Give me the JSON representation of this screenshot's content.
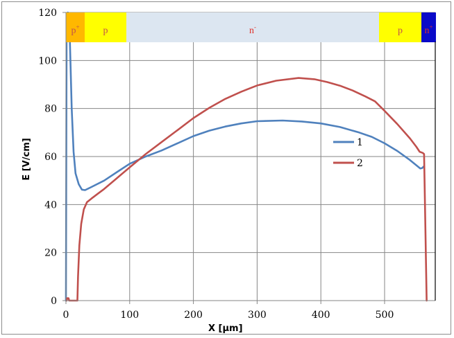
{
  "chart_data": {
    "type": "line",
    "title": "",
    "xlabel": "X [µm]",
    "ylabel": "E [V/cm]",
    "xlim": [
      0,
      580
    ],
    "ylim": [
      0,
      120
    ],
    "x_ticks": [
      0,
      100,
      200,
      300,
      400,
      500
    ],
    "y_ticks": [
      0,
      20,
      40,
      60,
      80,
      100,
      120
    ],
    "grid": true,
    "legend_position": "right-middle",
    "regions": [
      {
        "label": "p",
        "superscript": "+",
        "x_start": 0,
        "x_end": 30,
        "color": "#FFB800",
        "text_color": "#C0504D"
      },
      {
        "label": "p",
        "superscript": "",
        "x_start": 30,
        "x_end": 95,
        "color": "#FFFF00",
        "text_color": "#C0504D"
      },
      {
        "label": "n",
        "superscript": "-",
        "x_start": 95,
        "x_end": 491,
        "color": "#DCE6F1",
        "text_color": "#E0302A"
      },
      {
        "label": "p",
        "superscript": "",
        "x_start": 491,
        "x_end": 558,
        "color": "#FFFF00",
        "text_color": "#C0504D"
      },
      {
        "label": "n",
        "superscript": "+",
        "x_start": 558,
        "x_end": 580,
        "color": "#0A0AC8",
        "text_color": "#E0302A"
      }
    ],
    "series": [
      {
        "name": "1",
        "color": "#4F81BD",
        "points": [
          [
            0,
            0
          ],
          [
            0.5,
            60
          ],
          [
            1,
            108
          ],
          [
            3,
            120
          ],
          [
            6,
            110
          ],
          [
            9,
            80
          ],
          [
            12,
            62
          ],
          [
            15,
            53
          ],
          [
            20,
            48.5
          ],
          [
            25,
            46.2
          ],
          [
            30,
            46
          ],
          [
            40,
            47.3
          ],
          [
            60,
            50
          ],
          [
            80,
            53.5
          ],
          [
            100,
            57
          ],
          [
            125,
            60
          ],
          [
            150,
            62.5
          ],
          [
            175,
            65.5
          ],
          [
            200,
            68.5
          ],
          [
            225,
            70.8
          ],
          [
            250,
            72.5
          ],
          [
            275,
            73.8
          ],
          [
            300,
            74.7
          ],
          [
            340,
            75
          ],
          [
            370,
            74.6
          ],
          [
            400,
            73.8
          ],
          [
            430,
            72.3
          ],
          [
            460,
            70
          ],
          [
            480,
            68.2
          ],
          [
            500,
            65.5
          ],
          [
            520,
            62.3
          ],
          [
            540,
            58.5
          ],
          [
            550,
            56.3
          ],
          [
            556,
            55
          ],
          [
            559,
            55.2
          ],
          [
            562,
            56
          ]
        ]
      },
      {
        "name": "2",
        "color": "#C0504D",
        "points": [
          [
            1,
            0
          ],
          [
            2,
            1
          ],
          [
            4,
            1
          ],
          [
            5,
            0
          ],
          [
            18,
            0
          ],
          [
            19,
            10
          ],
          [
            21,
            23
          ],
          [
            24,
            32
          ],
          [
            28,
            38
          ],
          [
            33,
            41
          ],
          [
            40,
            42.5
          ],
          [
            50,
            44.5
          ],
          [
            60,
            46.5
          ],
          [
            80,
            51
          ],
          [
            100,
            55.5
          ],
          [
            125,
            61
          ],
          [
            150,
            66
          ],
          [
            175,
            71
          ],
          [
            200,
            76
          ],
          [
            225,
            80.3
          ],
          [
            250,
            84
          ],
          [
            275,
            87
          ],
          [
            300,
            89.6
          ],
          [
            330,
            91.6
          ],
          [
            365,
            92.7
          ],
          [
            390,
            92.2
          ],
          [
            410,
            91
          ],
          [
            430,
            89.5
          ],
          [
            450,
            87.5
          ],
          [
            470,
            85
          ],
          [
            485,
            83
          ],
          [
            500,
            79
          ],
          [
            520,
            73.5
          ],
          [
            540,
            67.5
          ],
          [
            550,
            64
          ],
          [
            555,
            62
          ],
          [
            560,
            61.5
          ],
          [
            562,
            61
          ],
          [
            564,
            30
          ],
          [
            566,
            0
          ]
        ]
      }
    ]
  },
  "axes": {
    "x_title": "X [µm]",
    "y_title": "E [V/cm]",
    "x_tick_labels": [
      "0",
      "100",
      "200",
      "300",
      "400",
      "500"
    ],
    "y_tick_labels": [
      "0",
      "20",
      "40",
      "60",
      "80",
      "100",
      "120"
    ]
  },
  "legend": {
    "items": [
      {
        "label": "1",
        "color": "#4F81BD"
      },
      {
        "label": "2",
        "color": "#C0504D"
      }
    ]
  }
}
